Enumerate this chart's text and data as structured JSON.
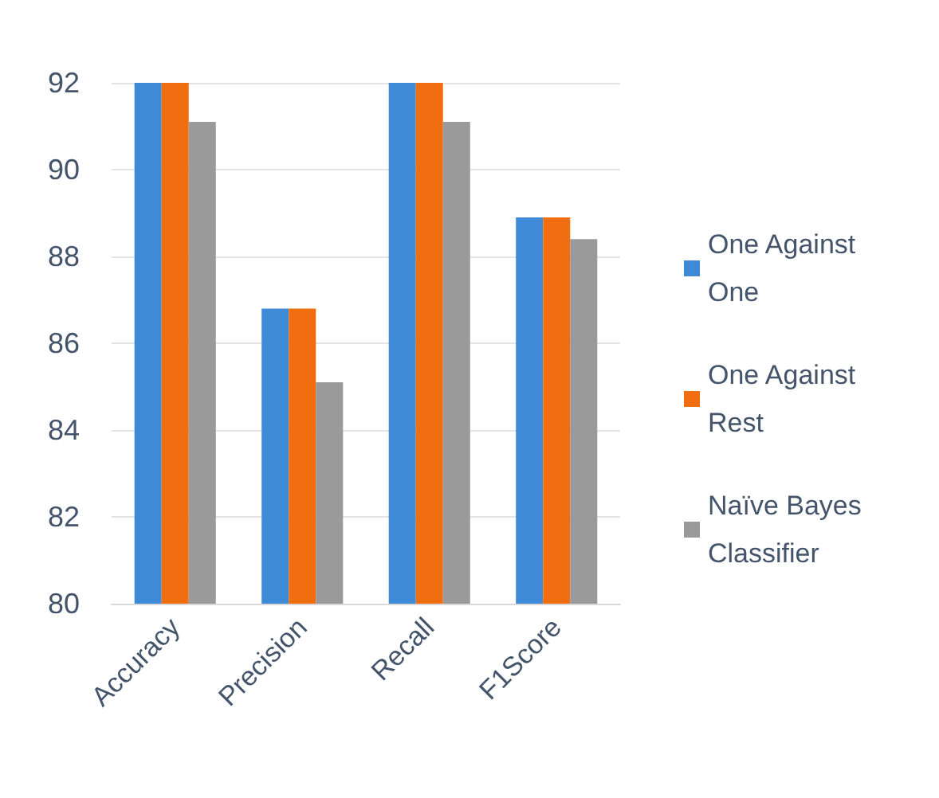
{
  "chart_data": {
    "type": "bar",
    "categories": [
      "Accuracy",
      "Precision",
      "Recall",
      "F1Score"
    ],
    "series": [
      {
        "name": "One Against One",
        "color": "#3f8ad6",
        "values": [
          92,
          86.8,
          92,
          88.9
        ]
      },
      {
        "name": "One Against Rest",
        "color": "#f06d10",
        "values": [
          92,
          86.8,
          92,
          88.9
        ]
      },
      {
        "name": "Naïve Bayes Classifier",
        "color": "#9a9a9a",
        "values": [
          91.1,
          85.1,
          91.1,
          88.4
        ]
      }
    ],
    "ylim": [
      80,
      92
    ],
    "yticks": [
      80,
      82,
      84,
      86,
      88,
      90,
      92
    ],
    "grid": "y",
    "legend": "right"
  }
}
